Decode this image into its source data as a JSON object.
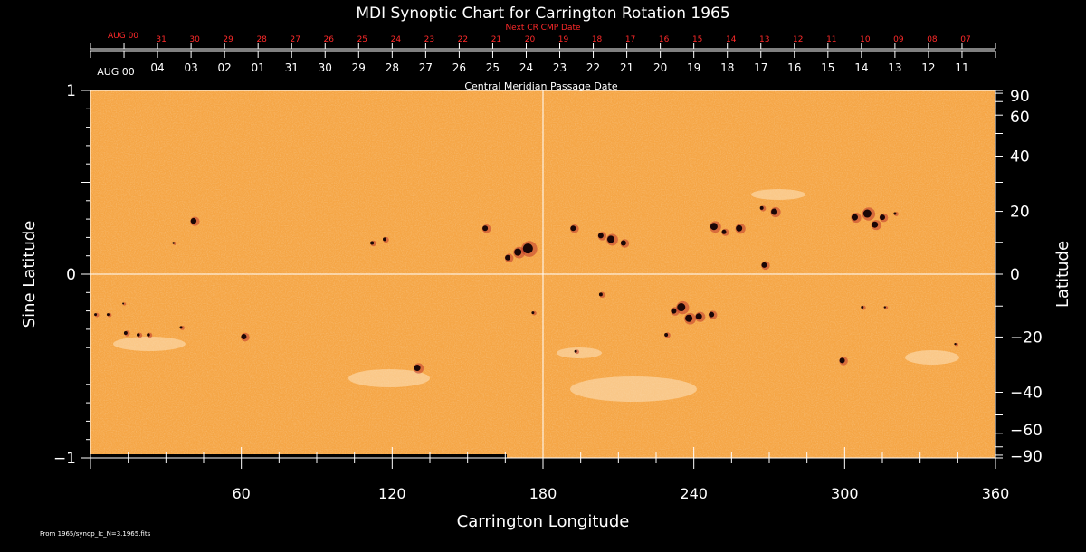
{
  "chart_data": {
    "type": "heatmap",
    "title": "MDI Synoptic Chart for Carrington Rotation 1965",
    "xlabel": "Carrington Longitude",
    "ylabel_left": "Sine Latitude",
    "ylabel_right": "Latitude",
    "xlim": [
      0,
      360
    ],
    "ylim": [
      -1,
      1
    ],
    "x_ticks": [
      "60",
      "120",
      "180",
      "240",
      "300",
      "360"
    ],
    "x_tick_values": [
      60,
      120,
      180,
      240,
      300,
      360
    ],
    "y_left_ticks": [
      "1",
      "0",
      "−1"
    ],
    "y_left_tick_values": [
      1,
      0,
      -1
    ],
    "y_right_ticks": [
      "90",
      "60",
      "40",
      "20",
      "0",
      "−20",
      "−40",
      "−60",
      "−90"
    ],
    "y_right_tick_values": [
      90,
      60,
      40,
      20,
      0,
      -20,
      -40,
      -60,
      -90
    ],
    "cmp_axis_label": "Central Meridian Passage Date",
    "cmp_month_label": "AUG 00",
    "cmp_dates": [
      "04",
      "03",
      "02",
      "01",
      "31",
      "30",
      "29",
      "28",
      "27",
      "26",
      "25",
      "24",
      "23",
      "22",
      "21",
      "20",
      "19",
      "18",
      "17",
      "16",
      "15",
      "14",
      "13",
      "12",
      "11"
    ],
    "next_cr_label": "Next CR CMP Date",
    "next_cr_month_label": "AUG 00",
    "next_cr_dates": [
      "31",
      "30",
      "29",
      "28",
      "27",
      "26",
      "25",
      "24",
      "23",
      "22",
      "21",
      "20",
      "19",
      "18",
      "17",
      "16",
      "15",
      "14",
      "13",
      "12",
      "11",
      "10",
      "09",
      "08",
      "07"
    ],
    "spots": [
      {
        "lon": 41,
        "slat": 0.29,
        "size": 3.2
      },
      {
        "lon": 33,
        "slat": 0.17,
        "size": 1.2
      },
      {
        "lon": 112,
        "slat": 0.17,
        "size": 2.0
      },
      {
        "lon": 117,
        "slat": 0.19,
        "size": 2.0
      },
      {
        "lon": 157,
        "slat": 0.25,
        "size": 3.0
      },
      {
        "lon": 166,
        "slat": 0.09,
        "size": 3.0
      },
      {
        "lon": 170,
        "slat": 0.12,
        "size": 4.0
      },
      {
        "lon": 174,
        "slat": 0.14,
        "size": 5.5
      },
      {
        "lon": 192,
        "slat": 0.25,
        "size": 3.0
      },
      {
        "lon": 203,
        "slat": 0.21,
        "size": 3.0
      },
      {
        "lon": 207,
        "slat": 0.19,
        "size": 4.0
      },
      {
        "lon": 212,
        "slat": 0.17,
        "size": 3.0
      },
      {
        "lon": 248,
        "slat": 0.26,
        "size": 4.0
      },
      {
        "lon": 252,
        "slat": 0.23,
        "size": 2.5
      },
      {
        "lon": 258,
        "slat": 0.25,
        "size": 3.5
      },
      {
        "lon": 267,
        "slat": 0.36,
        "size": 2.0
      },
      {
        "lon": 272,
        "slat": 0.34,
        "size": 3.5
      },
      {
        "lon": 268,
        "slat": 0.05,
        "size": 3.0
      },
      {
        "lon": 304,
        "slat": 0.31,
        "size": 3.5
      },
      {
        "lon": 309,
        "slat": 0.33,
        "size": 4.5
      },
      {
        "lon": 312,
        "slat": 0.27,
        "size": 3.5
      },
      {
        "lon": 315,
        "slat": 0.31,
        "size": 3.0
      },
      {
        "lon": 320,
        "slat": 0.33,
        "size": 1.5
      },
      {
        "lon": 2,
        "slat": -0.22,
        "size": 1.5
      },
      {
        "lon": 7,
        "slat": -0.22,
        "size": 1.5
      },
      {
        "lon": 13,
        "slat": -0.16,
        "size": 1.0
      },
      {
        "lon": 14,
        "slat": -0.32,
        "size": 2.0
      },
      {
        "lon": 19,
        "slat": -0.33,
        "size": 1.8
      },
      {
        "lon": 23,
        "slat": -0.33,
        "size": 1.8
      },
      {
        "lon": 36,
        "slat": -0.29,
        "size": 1.5
      },
      {
        "lon": 61,
        "slat": -0.34,
        "size": 3.0
      },
      {
        "lon": 130,
        "slat": -0.51,
        "size": 3.5
      },
      {
        "lon": 176,
        "slat": -0.21,
        "size": 1.5
      },
      {
        "lon": 203,
        "slat": -0.11,
        "size": 2.0
      },
      {
        "lon": 193,
        "slat": -0.42,
        "size": 1.5
      },
      {
        "lon": 229,
        "slat": -0.33,
        "size": 2.0
      },
      {
        "lon": 232,
        "slat": -0.2,
        "size": 3.0
      },
      {
        "lon": 235,
        "slat": -0.18,
        "size": 4.5
      },
      {
        "lon": 238,
        "slat": -0.24,
        "size": 4.0
      },
      {
        "lon": 242,
        "slat": -0.23,
        "size": 3.5
      },
      {
        "lon": 247,
        "slat": -0.22,
        "size": 3.0
      },
      {
        "lon": 299,
        "slat": -0.47,
        "size": 3.0
      },
      {
        "lon": 307,
        "slat": -0.18,
        "size": 1.5
      },
      {
        "lon": 316,
        "slat": -0.18,
        "size": 1.2
      },
      {
        "lon": 344,
        "slat": -0.38,
        "size": 1.2
      }
    ]
  },
  "footer_text": "From 1965/synop_Ic_N=3.1965.fits"
}
